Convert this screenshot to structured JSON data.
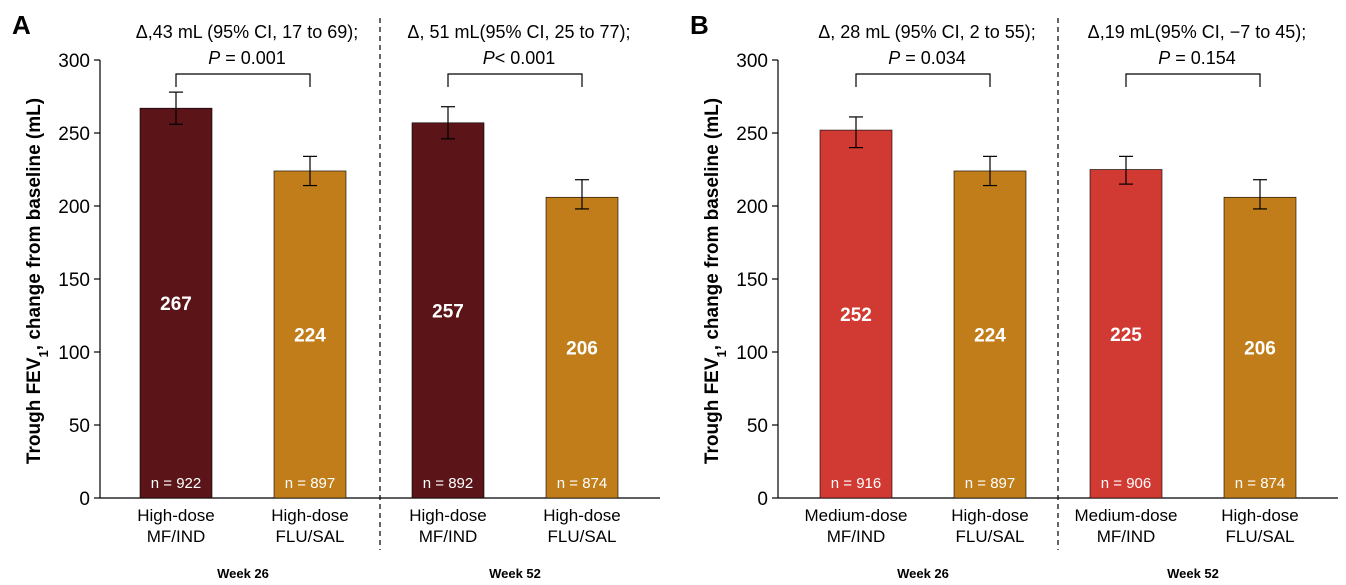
{
  "chart_data": [
    {
      "panel": "A",
      "type": "bar",
      "ylabel_main": "Trough FEV",
      "ylabel_sub": "1",
      "ylabel_rest": ", change from baseline (mL)",
      "ylim": [
        0,
        300
      ],
      "yticks": [
        "0",
        "50",
        "100",
        "150",
        "200",
        "250",
        "300"
      ],
      "groups": [
        {
          "week": "Week 26",
          "annotation_line1": "Δ,43 mL (95% CI, 17 to 69);",
          "p_letter": "P",
          "p_rest": " = 0.001",
          "bars": [
            {
              "label_line1": "High-dose",
              "label_line2": "MF/IND",
              "value": 267,
              "value_label": "267",
              "n_label": "n = 922",
              "err_low": 256,
              "err_high": 278,
              "color": "#5b1519"
            },
            {
              "label_line1": "High-dose",
              "label_line2": "FLU/SAL",
              "value": 224,
              "value_label": "224",
              "n_label": "n = 897",
              "err_low": 214,
              "err_high": 234,
              "color": "#c07d1a"
            }
          ]
        },
        {
          "week": "Week 52",
          "annotation_line1": "Δ, 51 mL(95% CI, 25 to 77);",
          "p_letter": "P",
          "p_rest": "< 0.001",
          "bars": [
            {
              "label_line1": "High-dose",
              "label_line2": "MF/IND",
              "value": 257,
              "value_label": "257",
              "n_label": "n = 892",
              "err_low": 246,
              "err_high": 268,
              "color": "#5b1519"
            },
            {
              "label_line1": "High-dose",
              "label_line2": "FLU/SAL",
              "value": 206,
              "value_label": "206",
              "n_label": "n = 874",
              "err_low": 198,
              "err_high": 218,
              "color": "#c07d1a"
            }
          ]
        }
      ]
    },
    {
      "panel": "B",
      "type": "bar",
      "ylabel_main": "Trough FEV",
      "ylabel_sub": "1",
      "ylabel_rest": ", change from baseline (mL)",
      "ylim": [
        0,
        300
      ],
      "yticks": [
        "0",
        "50",
        "100",
        "150",
        "200",
        "250",
        "300"
      ],
      "groups": [
        {
          "week": "Week 26",
          "annotation_line1": "Δ, 28 mL (95% CI, 2 to 55);",
          "p_letter": "P",
          "p_rest": " = 0.034",
          "bars": [
            {
              "label_line1": "Medium-dose",
              "label_line2": "MF/IND",
              "value": 252,
              "value_label": "252",
              "n_label": "n = 916",
              "err_low": 240,
              "err_high": 261,
              "color": "#d13a33"
            },
            {
              "label_line1": "High-dose",
              "label_line2": "FLU/SAL",
              "value": 224,
              "value_label": "224",
              "n_label": "n = 897",
              "err_low": 214,
              "err_high": 234,
              "color": "#c07d1a"
            }
          ]
        },
        {
          "week": "Week 52",
          "annotation_line1": "Δ,19 mL(95% CI, −7 to 45);",
          "p_letter": "P",
          "p_rest": " = 0.154",
          "bars": [
            {
              "label_line1": "Medium-dose",
              "label_line2": "MF/IND",
              "value": 225,
              "value_label": "225",
              "n_label": "n = 906",
              "err_low": 215,
              "err_high": 234,
              "color": "#d13a33"
            },
            {
              "label_line1": "High-dose",
              "label_line2": "FLU/SAL",
              "value": 206,
              "value_label": "206",
              "n_label": "n = 874",
              "err_low": 198,
              "err_high": 218,
              "color": "#c07d1a"
            }
          ]
        }
      ]
    }
  ]
}
